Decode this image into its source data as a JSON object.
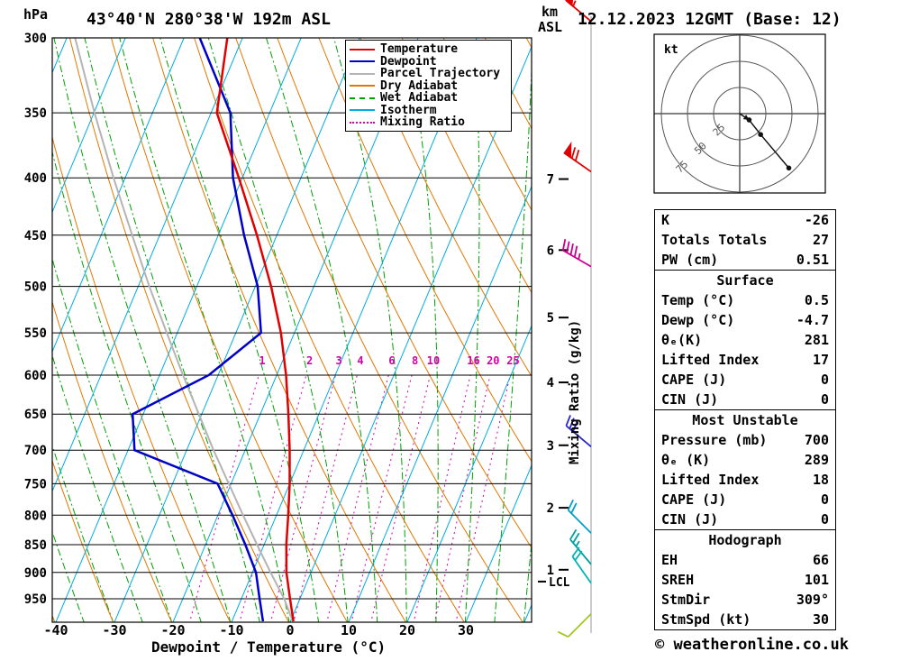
{
  "header": {
    "hpa_label": "hPa",
    "km_label": "km",
    "asl_label": "ASL",
    "station": "43°40'N 280°38'W 192m ASL",
    "datetime": "12.12.2023 12GMT (Base: 12)"
  },
  "legend": {
    "items": [
      {
        "label": "Temperature",
        "color": "#e00000",
        "style": "solid"
      },
      {
        "label": "Dewpoint",
        "color": "#0000c8",
        "style": "solid"
      },
      {
        "label": "Parcel Trajectory",
        "color": "#b4b4b4",
        "style": "solid"
      },
      {
        "label": "Dry Adiabat",
        "color": "#e07800",
        "style": "solid"
      },
      {
        "label": "Wet Adiabat",
        "color": "#00a000",
        "style": "dashed"
      },
      {
        "label": "Isotherm",
        "color": "#00ace0",
        "style": "solid"
      },
      {
        "label": "Mixing Ratio",
        "color": "#d400aa",
        "style": "dotted"
      }
    ]
  },
  "axes": {
    "pressure_ticks": [
      300,
      350,
      400,
      450,
      500,
      550,
      600,
      650,
      700,
      750,
      800,
      850,
      900,
      950
    ],
    "temp_ticks": [
      -40,
      -30,
      -20,
      -10,
      0,
      10,
      20,
      30
    ],
    "x_label": "Dewpoint / Temperature (°C)",
    "km_ticks": [
      7,
      6,
      5,
      4,
      3,
      2,
      1
    ],
    "mixing_ratio_axis_label": "Mixing Ratio (g/kg)",
    "mixing_ratio_values": [
      1,
      2,
      3,
      4,
      6,
      8,
      10,
      16,
      20,
      25
    ],
    "lcl_label": "LCL"
  },
  "chart_data": {
    "type": "line",
    "subtype": "skew-t-log-p sounding",
    "x_axis_label": "Dewpoint / Temperature (°C)",
    "y_axis_label": "Pressure (hPa)",
    "y_scale": "log-pressure",
    "pressure_range": [
      300,
      1000
    ],
    "temp_range": [
      -40,
      40
    ],
    "series": [
      {
        "name": "Temperature",
        "color": "#e00000",
        "points": [
          {
            "p": 995,
            "t": 0.5
          },
          {
            "p": 950,
            "t": -1.7
          },
          {
            "p": 900,
            "t": -4.2
          },
          {
            "p": 850,
            "t": -6.2
          },
          {
            "p": 800,
            "t": -8.0
          },
          {
            "p": 750,
            "t": -10.0
          },
          {
            "p": 700,
            "t": -12.4
          },
          {
            "p": 650,
            "t": -15.2
          },
          {
            "p": 600,
            "t": -18.4
          },
          {
            "p": 550,
            "t": -22.3
          },
          {
            "p": 500,
            "t": -27.3
          },
          {
            "p": 450,
            "t": -33.4
          },
          {
            "p": 400,
            "t": -40.6
          },
          {
            "p": 350,
            "t": -49.0
          },
          {
            "p": 300,
            "t": -52.6
          }
        ]
      },
      {
        "name": "Dewpoint",
        "color": "#0000c8",
        "points": [
          {
            "p": 995,
            "t": -4.7
          },
          {
            "p": 950,
            "t": -6.9
          },
          {
            "p": 900,
            "t": -9.4
          },
          {
            "p": 850,
            "t": -13.2
          },
          {
            "p": 800,
            "t": -17.5
          },
          {
            "p": 750,
            "t": -22.3
          },
          {
            "p": 700,
            "t": -38.9
          },
          {
            "p": 650,
            "t": -41.8
          },
          {
            "p": 600,
            "t": -31.6
          },
          {
            "p": 550,
            "t": -25.7
          },
          {
            "p": 500,
            "t": -29.6
          },
          {
            "p": 450,
            "t": -35.6
          },
          {
            "p": 400,
            "t": -41.6
          },
          {
            "p": 350,
            "t": -46.7
          },
          {
            "p": 300,
            "t": -57.3
          }
        ]
      },
      {
        "name": "Parcel Trajectory",
        "color": "#b4b4b4",
        "points": [
          {
            "p": 995,
            "t": 0.4
          },
          {
            "p": 950,
            "t": -2.7
          },
          {
            "p": 900,
            "t": -6.9
          },
          {
            "p": 850,
            "t": -11.2
          },
          {
            "p": 800,
            "t": -15.7
          },
          {
            "p": 750,
            "t": -20.4
          },
          {
            "p": 700,
            "t": -25.4
          },
          {
            "p": 650,
            "t": -30.5
          },
          {
            "p": 600,
            "t": -36.0
          },
          {
            "p": 550,
            "t": -41.8
          },
          {
            "p": 500,
            "t": -48.1
          },
          {
            "p": 450,
            "t": -54.7
          },
          {
            "p": 400,
            "t": -62.0
          },
          {
            "p": 350,
            "t": -69.9
          },
          {
            "p": 300,
            "t": -78.6
          }
        ]
      }
    ],
    "wind_barbs": [
      {
        "p": 290,
        "speed": 55,
        "dir": 310,
        "color": "#e00000"
      },
      {
        "p": 395,
        "speed": 70,
        "dir": 305,
        "color": "#e00000"
      },
      {
        "p": 480,
        "speed": 45,
        "dir": 300,
        "color": "#c8008c"
      },
      {
        "p": 695,
        "speed": 30,
        "dir": 310,
        "color": "#2828c8"
      },
      {
        "p": 830,
        "speed": 20,
        "dir": 315,
        "color": "#00a0c8"
      },
      {
        "p": 885,
        "speed": 25,
        "dir": 320,
        "color": "#00a0a0"
      },
      {
        "p": 920,
        "speed": 20,
        "dir": 325,
        "color": "#00b4b4"
      },
      {
        "p": 980,
        "speed": 10,
        "dir": 225,
        "color": "#a0c81e"
      }
    ],
    "lcl_pressure": 917
  },
  "hodograph": {
    "unit_label": "kt",
    "rings_kt": [
      25,
      50,
      75
    ],
    "trace_kt": [
      {
        "u": 0,
        "v": 0
      },
      {
        "u": 9,
        "v": -3
      },
      {
        "u": 20,
        "v": -10
      },
      {
        "u": 47,
        "v": -26
      }
    ]
  },
  "tables": [
    {
      "id": "indices-summary-table",
      "header": null,
      "rows": [
        [
          "K",
          "-26"
        ],
        [
          "Totals Totals",
          "27"
        ],
        [
          "PW (cm)",
          "0.51"
        ]
      ]
    },
    {
      "id": "surface-table",
      "header": "Surface",
      "rows": [
        [
          "Temp (°C)",
          "0.5"
        ],
        [
          "Dewp (°C)",
          "-4.7"
        ],
        [
          "θₑ(K)",
          "281"
        ],
        [
          "Lifted Index",
          "17"
        ],
        [
          "CAPE (J)",
          "0"
        ],
        [
          "CIN (J)",
          "0"
        ]
      ]
    },
    {
      "id": "most-unstable-table",
      "header": "Most Unstable",
      "rows": [
        [
          "Pressure (mb)",
          "700"
        ],
        [
          "θₑ (K)",
          "289"
        ],
        [
          "Lifted Index",
          "18"
        ],
        [
          "CAPE (J)",
          "0"
        ],
        [
          "CIN (J)",
          "0"
        ]
      ]
    },
    {
      "id": "hodograph-table",
      "header": "Hodograph",
      "rows": [
        [
          "EH",
          "66"
        ],
        [
          "SREH",
          "101"
        ],
        [
          "StmDir",
          "309°"
        ],
        [
          "StmSpd (kt)",
          "30"
        ]
      ]
    }
  ],
  "footer": {
    "copyright": "© weatheronline.co.uk"
  }
}
